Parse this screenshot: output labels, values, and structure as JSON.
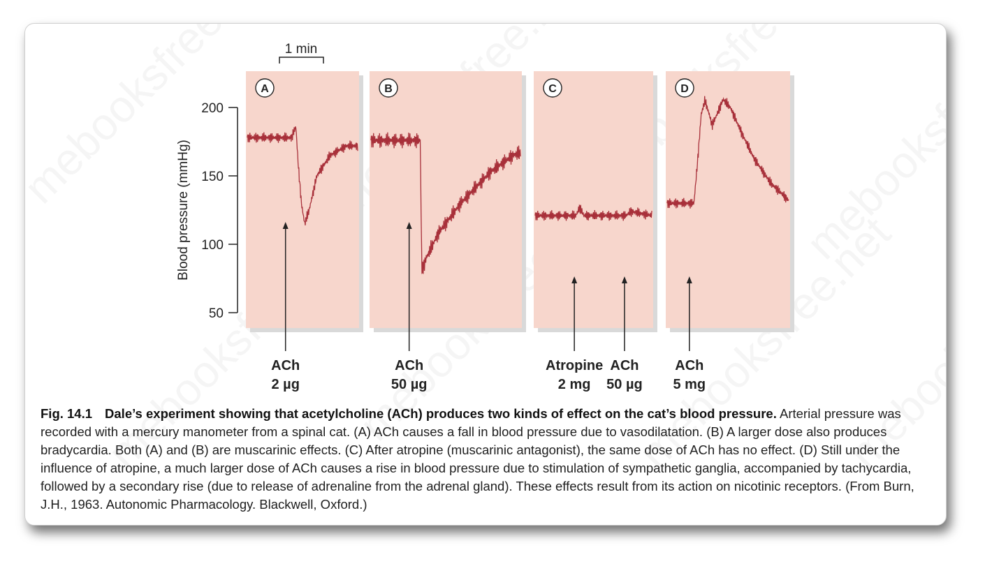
{
  "caption": {
    "fig_number": "Fig. 14.1",
    "lead": "Dale’s experiment showing that acetylcholine (ACh) produces two kinds of effect on the cat’s blood pressure.",
    "body": " Arterial pressure was recorded with a mercury manometer from a spinal cat. (A) ACh causes a fall in blood pressure due to vasodilatation. (B) A larger dose also produces bradycardia. Both (A) and (B) are muscarinic effects. (C) After atropine (muscarinic antagonist), the same dose of ACh has no effect. (D) Still under the influence of atropine, a much larger dose of ACh causes a rise in blood pressure due to stimulation of sympathetic ganglia, accompanied by tachycardia, followed by a secondary rise (due to release of adrenaline from the adrenal gland). These effects result from its action on nicotinic receptors. (From Burn, J.H., 1963. Autonomic Pharmacology. Blackwell, Oxford.)"
  },
  "watermark": "mebooksfree.net",
  "chart_data": {
    "type": "line",
    "ylabel": "Blood pressure (mmHg)",
    "yticks": [
      50,
      100,
      150,
      200
    ],
    "ylim": [
      50,
      200
    ],
    "time_scale_label": "1 min",
    "trace_color": "#a8303a",
    "panel_color": "#f7d6cc",
    "panels": [
      {
        "id": "A",
        "points": [
          [
            0,
            178
          ],
          [
            0.4,
            178
          ],
          [
            0.44,
            186
          ],
          [
            0.46,
            160
          ],
          [
            0.49,
            130
          ],
          [
            0.52,
            115
          ],
          [
            0.56,
            125
          ],
          [
            0.63,
            150
          ],
          [
            0.75,
            165
          ],
          [
            0.9,
            172
          ],
          [
            1,
            172
          ]
        ],
        "noise": 4,
        "drugs": [
          {
            "x": 0.35,
            "label": "ACh",
            "dose": "2 µg"
          }
        ]
      },
      {
        "id": "B",
        "points": [
          [
            0,
            176
          ],
          [
            0.33,
            176
          ],
          [
            0.335,
            130
          ],
          [
            0.34,
            80
          ],
          [
            0.37,
            90
          ],
          [
            0.45,
            108
          ],
          [
            0.6,
            130
          ],
          [
            0.8,
            153
          ],
          [
            0.95,
            165
          ],
          [
            1,
            167
          ]
        ],
        "noise": 6,
        "drugs": [
          {
            "x": 0.26,
            "label": "ACh",
            "dose": "50 µg"
          }
        ]
      },
      {
        "id": "C",
        "points": [
          [
            0,
            121
          ],
          [
            0.35,
            121
          ],
          [
            0.38,
            127
          ],
          [
            0.42,
            121
          ],
          [
            0.78,
            121
          ],
          [
            0.82,
            124
          ],
          [
            1,
            121
          ]
        ],
        "noise": 4,
        "drugs": [
          {
            "x": 0.34,
            "label": "Atropine",
            "dose": "2 mg"
          },
          {
            "x": 0.76,
            "label": "ACh",
            "dose": "50 µg"
          }
        ]
      },
      {
        "id": "D",
        "points": [
          [
            0,
            130
          ],
          [
            0.22,
            130
          ],
          [
            0.25,
            160
          ],
          [
            0.28,
            195
          ],
          [
            0.31,
            205
          ],
          [
            0.34,
            197
          ],
          [
            0.37,
            187
          ],
          [
            0.42,
            197
          ],
          [
            0.46,
            206
          ],
          [
            0.52,
            200
          ],
          [
            0.62,
            180
          ],
          [
            0.72,
            162
          ],
          [
            0.85,
            145
          ],
          [
            1,
            132
          ]
        ],
        "noise": 4,
        "drugs": [
          {
            "x": 0.19,
            "label": "ACh",
            "dose": "5 mg"
          }
        ]
      }
    ]
  }
}
